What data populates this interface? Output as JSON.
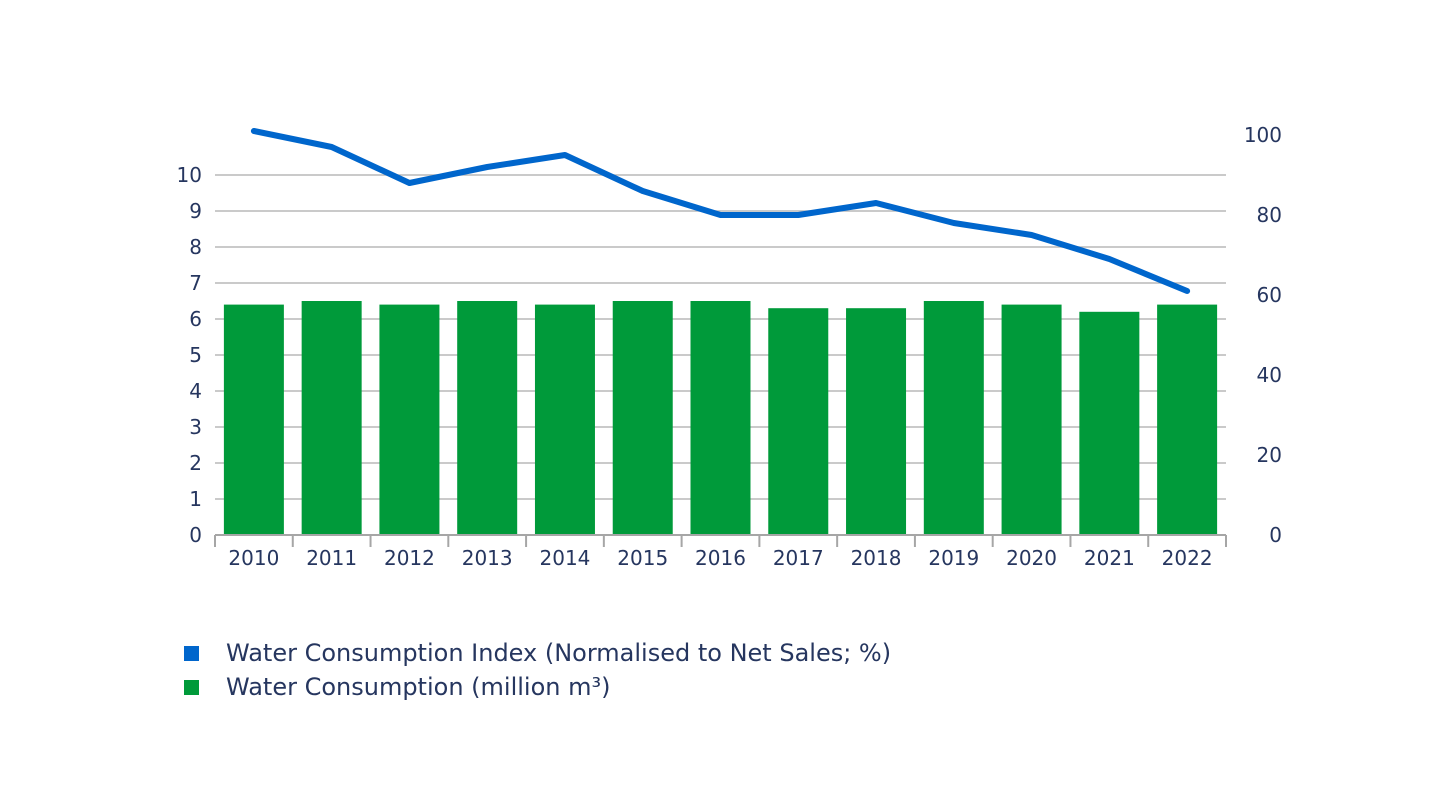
{
  "chart_data": {
    "type": "bar+line",
    "categories": [
      "2010",
      "2011",
      "2012",
      "2013",
      "2014",
      "2015",
      "2016",
      "2017",
      "2018",
      "2019",
      "2020",
      "2021",
      "2022"
    ],
    "series": [
      {
        "name": "Water Consumption (million m³)",
        "type": "bar",
        "axis": "left",
        "color": "#009a3a",
        "values": [
          6.4,
          6.5,
          6.4,
          6.5,
          6.4,
          6.5,
          6.5,
          6.3,
          6.3,
          6.5,
          6.4,
          6.2,
          6.4
        ]
      },
      {
        "name": "Water Consumption Index (Normalised to Net Sales; %)",
        "type": "line",
        "axis": "right",
        "color": "#0066cc",
        "values": [
          101,
          97,
          88,
          92,
          95,
          86,
          80,
          80,
          83,
          78,
          75,
          69,
          61
        ]
      }
    ],
    "left_axis": {
      "ticks": [
        "0",
        "1",
        "2",
        "3",
        "4",
        "5",
        "6",
        "7",
        "8",
        "9",
        "10"
      ],
      "range": [
        0,
        10
      ]
    },
    "right_axis": {
      "ticks": [
        "0",
        "20",
        "40",
        "60",
        "80",
        "100"
      ],
      "range": [
        0,
        100
      ]
    },
    "grid": true,
    "legend_position": "bottom-left"
  },
  "legend": [
    {
      "label": "Water Consumption Index (Normalised to Net Sales; %)",
      "color": "#0066cc"
    },
    {
      "label": "Water Consumption (million m³)",
      "color": "#009a3a"
    }
  ]
}
